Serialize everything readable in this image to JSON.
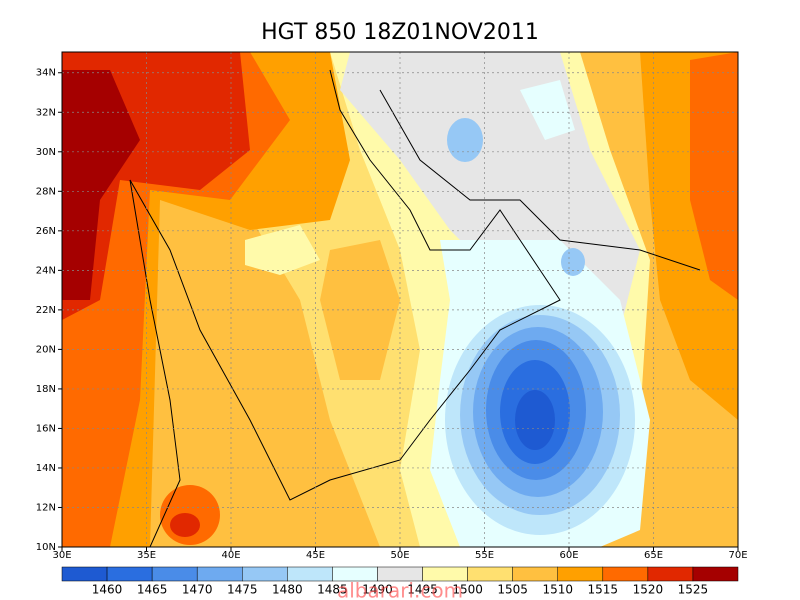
{
  "chart_data": {
    "type": "contour-map",
    "title": "HGT 850 18Z01NOV2011",
    "xlim": [
      30,
      70
    ],
    "ylim": [
      10,
      35.05
    ],
    "xticks": [
      {
        "value": 30,
        "label": "30E"
      },
      {
        "value": 35,
        "label": "35E"
      },
      {
        "value": 40,
        "label": "40E"
      },
      {
        "value": 45,
        "label": "45E"
      },
      {
        "value": 50,
        "label": "50E"
      },
      {
        "value": 55,
        "label": "55E"
      },
      {
        "value": 60,
        "label": "60E"
      },
      {
        "value": 65,
        "label": "65E"
      },
      {
        "value": 70,
        "label": "70E"
      }
    ],
    "yticks": [
      {
        "value": 10,
        "label": "10N"
      },
      {
        "value": 12,
        "label": "12N"
      },
      {
        "value": 14,
        "label": "14N"
      },
      {
        "value": 16,
        "label": "16N"
      },
      {
        "value": 18,
        "label": "18N"
      },
      {
        "value": 20,
        "label": "20N"
      },
      {
        "value": 22,
        "label": "22N"
      },
      {
        "value": 24,
        "label": "24N"
      },
      {
        "value": 26,
        "label": "26N"
      },
      {
        "value": 28,
        "label": "28N"
      },
      {
        "value": 30,
        "label": "30N"
      },
      {
        "value": 32,
        "label": "32N"
      },
      {
        "value": 34,
        "label": "34N"
      }
    ],
    "grid": true,
    "levels": [
      1460,
      1465,
      1470,
      1475,
      1480,
      1485,
      1490,
      1495,
      1500,
      1505,
      1510,
      1515,
      1520,
      1525
    ],
    "colors": [
      "#1e5ad2",
      "#2a6ee0",
      "#4a8ce8",
      "#6eaaf0",
      "#96c8f5",
      "#bee6fa",
      "#e6ffff",
      "#e6e6e6",
      "#fffaaa",
      "#ffe070",
      "#ffc040",
      "#ffa000",
      "#ff6a00",
      "#e12800",
      "#a50000"
    ],
    "watermark": "albarari.com"
  }
}
